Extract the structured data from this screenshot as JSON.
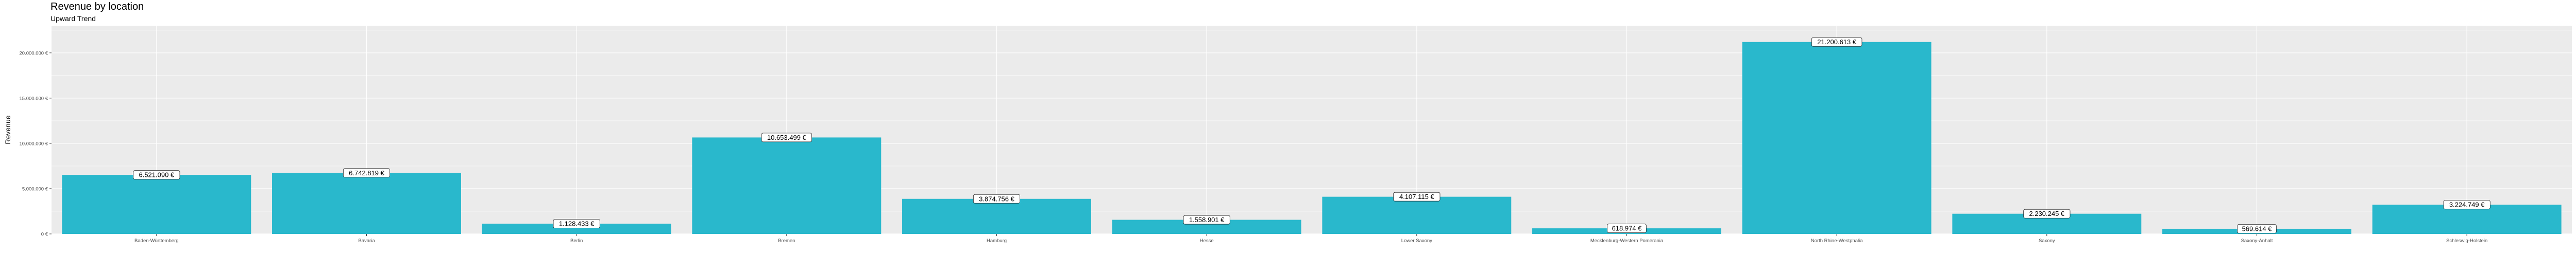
{
  "chart_data": {
    "type": "bar",
    "title": "Revenue by location",
    "subtitle": "Upward Trend",
    "xlabel": "",
    "ylabel": "Revenue",
    "ylim": [
      0,
      23000000
    ],
    "grid": true,
    "categories": [
      "Baden-Württemberg",
      "Bavaria",
      "Berlin",
      "Bremen",
      "Hamburg",
      "Hesse",
      "Lower Saxony",
      "Mecklenburg-Western Pomerania",
      "North Rhine-Westphalia",
      "Saxony",
      "Saxony-Anhalt",
      "Schleswig-Holstein"
    ],
    "values": [
      6521090,
      6742819,
      1128433,
      10653499,
      3874756,
      1558901,
      4107115,
      618974,
      21200613,
      2230245,
      569614,
      3224749
    ],
    "data_labels": [
      "6.521.090 €",
      "6.742.819 €",
      "1.128.433 €",
      "10.653.499 €",
      "3.874.756 €",
      "1.558.901 €",
      "4.107.115 €",
      "618.974 €",
      "21.200.613 €",
      "2.230.245 €",
      "569.614 €",
      "3.224.749 €"
    ],
    "y_ticks": [
      0,
      5000000,
      10000000,
      15000000,
      20000000
    ],
    "y_tick_labels": [
      "0 €",
      "5.000.000 €",
      "10.000.000 €",
      "15.000.000 €",
      "20.000.000 €"
    ],
    "colors": {
      "bar": "#29B8CC",
      "panel": "#EBEBEB",
      "grid": "#FFFFFF"
    }
  }
}
